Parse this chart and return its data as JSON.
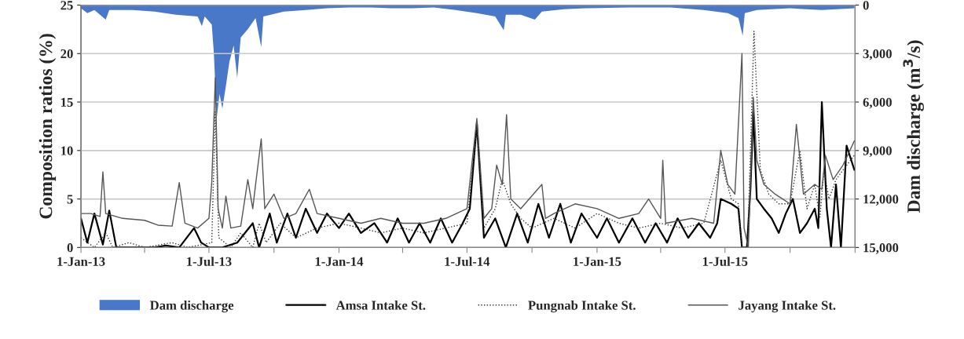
{
  "chart_data": {
    "type": "line",
    "ylabel": "Composition ratios (%)",
    "y2label": "Dam discharge (m$^{3}$/s)",
    "xlim": [
      "2013-01-01",
      "2016-01-01"
    ],
    "xticks": [
      {
        "value": "2013-01-01",
        "label": "1-Jan-13"
      },
      {
        "value": "2013-04-01",
        "label": null
      },
      {
        "value": "2013-07-01",
        "label": "1-Jul-13"
      },
      {
        "value": "2013-10-01",
        "label": null
      },
      {
        "value": "2014-01-01",
        "label": "1-Jan-14"
      },
      {
        "value": "2014-04-01",
        "label": null
      },
      {
        "value": "2014-07-01",
        "label": "1-Jul-14"
      },
      {
        "value": "2014-10-01",
        "label": null
      },
      {
        "value": "2015-01-01",
        "label": "1-Jan-15"
      },
      {
        "value": "2015-04-01",
        "label": null
      },
      {
        "value": "2015-07-01",
        "label": "1-Jul-15"
      },
      {
        "value": "2015-10-01",
        "label": null
      },
      {
        "value": "2016-01-01",
        "label": null
      }
    ],
    "ylim": [
      0,
      25
    ],
    "yticks": [
      0,
      5,
      10,
      15,
      20,
      25
    ],
    "y2lim": [
      15000,
      0
    ],
    "y2ticks": [
      {
        "value": 0,
        "label": "0"
      },
      {
        "value": 3000,
        "label": "3,000"
      },
      {
        "value": 6000,
        "label": "6,000"
      },
      {
        "value": 9000,
        "label": "9,000"
      },
      {
        "value": 12000,
        "label": "12,000"
      },
      {
        "value": 15000,
        "label": "15,000"
      }
    ],
    "grid": "y",
    "legend": "bottom",
    "series": [
      {
        "name": "Dam discharge",
        "type": "area",
        "axis": "y2",
        "color": "#4a78c8",
        "x": [
          "2013-01-01",
          "2013-01-10",
          "2013-01-20",
          "2013-02-05",
          "2013-02-10",
          "2013-03-15",
          "2013-04-15",
          "2013-05-15",
          "2013-06-15",
          "2013-06-21",
          "2013-06-25",
          "2013-07-05",
          "2013-07-08",
          "2013-07-12",
          "2013-07-16",
          "2013-07-20",
          "2013-07-25",
          "2013-07-30",
          "2013-08-05",
          "2013-08-10",
          "2013-08-15",
          "2013-08-25",
          "2013-09-05",
          "2013-09-13",
          "2013-09-16",
          "2013-10-15",
          "2013-11-15",
          "2013-12-15",
          "2014-01-15",
          "2014-02-15",
          "2014-03-15",
          "2014-04-15",
          "2014-05-15",
          "2014-06-15",
          "2014-07-15",
          "2014-08-10",
          "2014-08-22",
          "2014-08-25",
          "2014-09-15",
          "2014-10-05",
          "2014-10-15",
          "2014-11-15",
          "2014-12-15",
          "2015-02-15",
          "2015-04-15",
          "2015-06-01",
          "2015-07-05",
          "2015-07-20",
          "2015-07-26",
          "2015-07-29",
          "2015-08-15",
          "2015-10-01",
          "2015-11-15",
          "2015-12-31"
        ],
        "values": [
          200,
          500,
          300,
          900,
          300,
          300,
          400,
          600,
          700,
          1300,
          700,
          1200,
          3000,
          7000,
          5500,
          6400,
          5000,
          3500,
          2500,
          4500,
          2000,
          1500,
          800,
          2600,
          700,
          400,
          300,
          200,
          150,
          150,
          200,
          200,
          150,
          300,
          500,
          700,
          1550,
          600,
          600,
          900,
          400,
          250,
          200,
          150,
          150,
          300,
          500,
          800,
          1900,
          500,
          300,
          200,
          300,
          200
        ]
      },
      {
        "name": "Amsa Intake St.",
        "color": "#000000",
        "line_style": "solid",
        "x": [
          "2013-01-01",
          "2013-01-10",
          "2013-01-20",
          "2013-02-01",
          "2013-02-10",
          "2013-02-20",
          "2013-03-15",
          "2013-04-15",
          "2013-05-01",
          "2013-05-20",
          "2013-06-10",
          "2013-06-20",
          "2013-07-01",
          "2013-07-20",
          "2013-08-10",
          "2013-09-01",
          "2013-09-10",
          "2013-09-25",
          "2013-10-05",
          "2013-10-20",
          "2013-11-01",
          "2013-11-15",
          "2013-12-01",
          "2013-12-15",
          "2014-01-01",
          "2014-01-15",
          "2014-02-01",
          "2014-02-20",
          "2014-03-10",
          "2014-03-25",
          "2014-04-10",
          "2014-04-25",
          "2014-05-10",
          "2014-05-25",
          "2014-06-10",
          "2014-06-25",
          "2014-07-05",
          "2014-07-15",
          "2014-07-25",
          "2014-08-10",
          "2014-08-25",
          "2014-09-10",
          "2014-09-25",
          "2014-10-10",
          "2014-10-25",
          "2014-11-10",
          "2014-11-25",
          "2014-12-10",
          "2015-01-01",
          "2015-01-15",
          "2015-02-01",
          "2015-02-20",
          "2015-03-10",
          "2015-03-25",
          "2015-04-10",
          "2015-04-25",
          "2015-05-10",
          "2015-05-25",
          "2015-06-10",
          "2015-06-20",
          "2015-06-25",
          "2015-07-10",
          "2015-07-20",
          "2015-07-25",
          "2015-08-01",
          "2015-08-06",
          "2015-08-10",
          "2015-08-15",
          "2015-08-25",
          "2015-09-05",
          "2015-09-15",
          "2015-09-25",
          "2015-10-05",
          "2015-10-15",
          "2015-10-25",
          "2015-11-05",
          "2015-11-10",
          "2015-11-15",
          "2015-11-22",
          "2015-11-28",
          "2015-12-05",
          "2015-12-12",
          "2015-12-20",
          "2015-12-31"
        ],
        "values": [
          3,
          0.5,
          3.5,
          0.3,
          3.8,
          0,
          0,
          0,
          0.2,
          0,
          2,
          0.5,
          0,
          0,
          0.5,
          2.5,
          0,
          3.5,
          0.5,
          3.5,
          1,
          4,
          1.5,
          3.5,
          2,
          3.5,
          1.5,
          2.5,
          0.5,
          3,
          0.5,
          2.5,
          0.5,
          3,
          0.5,
          2.5,
          4,
          12.8,
          1,
          3,
          0,
          3.5,
          0.5,
          4.5,
          1,
          4.5,
          0.5,
          3.5,
          1,
          3,
          0.5,
          3,
          0.5,
          2.5,
          0.5,
          3,
          1,
          2.5,
          1,
          2.5,
          5,
          4.5,
          4,
          0,
          0,
          6,
          14,
          5,
          4,
          3,
          1.5,
          3.5,
          5,
          1.5,
          2.5,
          4,
          2,
          15,
          4,
          0,
          6.5,
          0,
          10.5,
          8
        ]
      },
      {
        "name": "Pungnab Intake St.",
        "color": "#333333",
        "line_style": "dotted",
        "x": [
          "2013-01-01",
          "2013-01-20",
          "2013-02-05",
          "2013-02-15",
          "2013-03-10",
          "2013-04-01",
          "2013-05-10",
          "2013-06-01",
          "2013-07-05",
          "2013-07-10",
          "2013-07-15",
          "2013-08-01",
          "2013-08-15",
          "2013-09-01",
          "2013-09-10",
          "2013-09-20",
          "2013-10-10",
          "2013-11-01",
          "2013-12-01",
          "2014-01-01",
          "2014-02-01",
          "2014-03-01",
          "2014-04-01",
          "2014-05-01",
          "2014-06-01",
          "2014-07-01",
          "2014-07-15",
          "2014-07-25",
          "2014-08-10",
          "2014-08-20",
          "2014-09-01",
          "2014-09-15",
          "2014-10-01",
          "2014-11-01",
          "2014-12-01",
          "2015-01-01",
          "2015-02-01",
          "2015-03-01",
          "2015-04-01",
          "2015-05-01",
          "2015-06-01",
          "2015-06-25",
          "2015-07-10",
          "2015-07-20",
          "2015-07-25",
          "2015-08-02",
          "2015-08-11",
          "2015-08-20",
          "2015-09-01",
          "2015-09-15",
          "2015-10-01",
          "2015-10-15",
          "2015-10-25",
          "2015-11-05",
          "2015-11-12",
          "2015-11-18",
          "2015-11-25",
          "2015-12-05",
          "2015-12-15",
          "2015-12-31"
        ],
        "values": [
          1,
          0,
          1.5,
          0,
          0.5,
          0,
          0.5,
          0,
          0.5,
          14,
          1,
          0,
          1.5,
          0,
          2.5,
          0.5,
          2.5,
          1,
          2,
          2.5,
          2,
          1.5,
          2,
          1.5,
          2,
          2.5,
          12.5,
          2,
          4,
          7,
          4.5,
          3,
          2,
          3,
          2,
          3.5,
          2.5,
          2,
          2.5,
          2,
          2.5,
          9,
          5,
          4.5,
          0,
          0,
          22.3,
          8,
          5.5,
          4.5,
          4.5,
          10,
          4,
          6.5,
          3,
          8,
          5,
          7,
          8,
          9.5
        ]
      },
      {
        "name": "Jayang Intake St.",
        "color": "#555555",
        "line_style": "solid",
        "x": [
          "2013-01-01",
          "2013-01-15",
          "2013-01-28",
          "2013-02-01",
          "2013-02-05",
          "2013-03-01",
          "2013-04-01",
          "2013-04-20",
          "2013-05-10",
          "2013-05-20",
          "2013-05-28",
          "2013-06-15",
          "2013-07-01",
          "2013-07-05",
          "2013-07-10",
          "2013-07-14",
          "2013-07-20",
          "2013-07-25",
          "2013-08-01",
          "2013-08-15",
          "2013-08-25",
          "2013-09-01",
          "2013-09-05",
          "2013-09-13",
          "2013-09-18",
          "2013-10-01",
          "2013-10-15",
          "2013-11-01",
          "2013-11-20",
          "2013-12-01",
          "2014-01-01",
          "2014-02-01",
          "2014-03-01",
          "2014-04-01",
          "2014-05-01",
          "2014-06-01",
          "2014-07-01",
          "2014-07-15",
          "2014-07-25",
          "2014-08-05",
          "2014-08-12",
          "2014-08-20",
          "2014-08-26",
          "2014-09-01",
          "2014-09-15",
          "2014-10-15",
          "2014-10-20",
          "2014-11-01",
          "2014-12-01",
          "2015-01-01",
          "2015-02-01",
          "2015-03-01",
          "2015-03-15",
          "2015-04-01",
          "2015-04-04",
          "2015-04-08",
          "2015-05-15",
          "2015-06-15",
          "2015-06-25",
          "2015-07-05",
          "2015-07-15",
          "2015-07-25",
          "2015-07-28",
          "2015-08-03",
          "2015-08-10",
          "2015-08-15",
          "2015-08-25",
          "2015-09-10",
          "2015-10-01",
          "2015-10-10",
          "2015-10-20",
          "2015-11-05",
          "2015-11-15",
          "2015-11-20",
          "2015-12-01",
          "2015-12-15",
          "2015-12-31"
        ],
        "values": [
          3.5,
          3.5,
          3.2,
          7.8,
          3.5,
          3,
          2.8,
          2.3,
          2.2,
          6.7,
          2.5,
          2,
          3,
          6.7,
          17.5,
          4,
          2,
          5.3,
          2,
          2.2,
          7,
          4,
          6.5,
          11.2,
          4,
          5.5,
          3,
          3.5,
          6,
          3.5,
          3,
          2.5,
          3,
          2.5,
          2.5,
          3,
          4,
          13.3,
          3,
          4,
          8.5,
          6.5,
          13.7,
          5,
          4,
          6.5,
          3,
          3.5,
          4.5,
          4,
          3,
          3.5,
          5,
          3,
          9,
          2.5,
          3,
          2.5,
          10,
          6.5,
          5.5,
          20,
          2,
          0,
          15.5,
          9,
          6.5,
          5.5,
          4.5,
          12.7,
          5.5,
          6.5,
          6,
          9.5,
          7,
          8.5,
          11
        ]
      }
    ]
  }
}
